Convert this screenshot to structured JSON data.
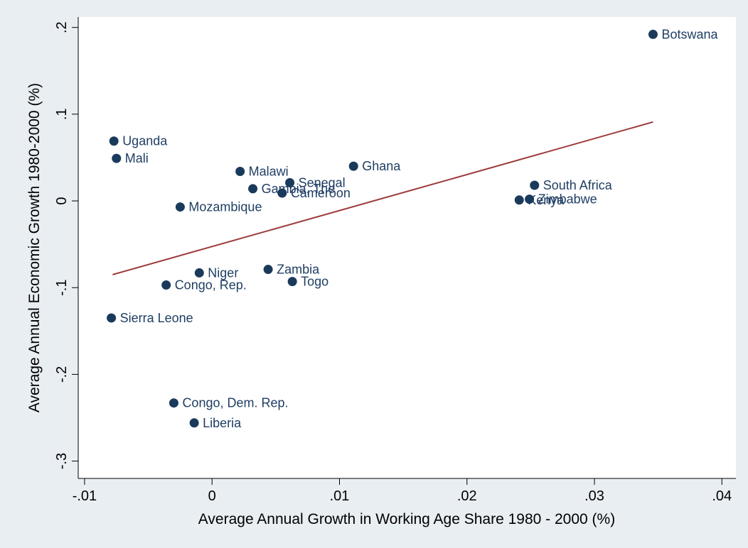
{
  "chart_data": {
    "type": "scatter",
    "title": "",
    "xlabel": "Average Annual Growth in Working Age Share 1980 - 2000 (%)",
    "ylabel": "Average Annual Economic Growth 1980-2000 (%)",
    "xlim": [
      -0.0105,
      0.0411
    ],
    "ylim": [
      -0.32,
      0.212
    ],
    "x_ticks": [
      {
        "value": -0.01,
        "label": "-.01"
      },
      {
        "value": 0,
        "label": "0"
      },
      {
        "value": 0.01,
        "label": ".01"
      },
      {
        "value": 0.02,
        "label": ".02"
      },
      {
        "value": 0.03,
        "label": ".03"
      },
      {
        "value": 0.04,
        "label": ".04"
      }
    ],
    "y_ticks": [
      {
        "value": -0.3,
        "label": "-.3"
      },
      {
        "value": -0.2,
        "label": "-.2"
      },
      {
        "value": -0.1,
        "label": "-.1"
      },
      {
        "value": 0,
        "label": "0"
      },
      {
        "value": 0.1,
        "label": ".1"
      },
      {
        "value": 0.2,
        "label": ".2"
      }
    ],
    "grid": false,
    "legend": "none",
    "colors": {
      "background": "#e9eef3",
      "plot_area": "#ffffff",
      "marker": "#1a3a5c",
      "label": "#1f3e63",
      "fit_line": "#9e3b3b"
    },
    "points": [
      {
        "label": "Botswana",
        "x": 0.0346,
        "y": 0.192
      },
      {
        "label": "Uganda",
        "x": -0.0077,
        "y": 0.069
      },
      {
        "label": "Mali",
        "x": -0.0075,
        "y": 0.049
      },
      {
        "label": "Malawi",
        "x": 0.0022,
        "y": 0.034
      },
      {
        "label": "Gambia, The",
        "x": 0.0032,
        "y": 0.014
      },
      {
        "label": "Senegal",
        "x": 0.0061,
        "y": 0.021
      },
      {
        "label": "Cameroon",
        "x": 0.0055,
        "y": 0.009
      },
      {
        "label": "Ghana",
        "x": 0.0111,
        "y": 0.04
      },
      {
        "label": "South Africa",
        "x": 0.0253,
        "y": 0.018
      },
      {
        "label": "Kenya",
        "x": 0.0241,
        "y": 0.001
      },
      {
        "label": "Zimbabwe",
        "x": 0.0249,
        "y": 0.002
      },
      {
        "label": "Mozambique",
        "x": -0.0025,
        "y": -0.007
      },
      {
        "label": "Niger",
        "x": -0.001,
        "y": -0.083
      },
      {
        "label": "Zambia",
        "x": 0.0044,
        "y": -0.079
      },
      {
        "label": "Togo",
        "x": 0.0063,
        "y": -0.093
      },
      {
        "label": "Congo, Rep.",
        "x": -0.0036,
        "y": -0.097
      },
      {
        "label": "Sierra Leone",
        "x": -0.0079,
        "y": -0.135
      },
      {
        "label": "Congo, Dem. Rep.",
        "x": -0.003,
        "y": -0.233
      },
      {
        "label": "Liberia",
        "x": -0.0014,
        "y": -0.256
      }
    ],
    "fit_line": {
      "x": [
        -0.0078,
        0.0346
      ],
      "y": [
        -0.085,
        0.091
      ]
    }
  }
}
